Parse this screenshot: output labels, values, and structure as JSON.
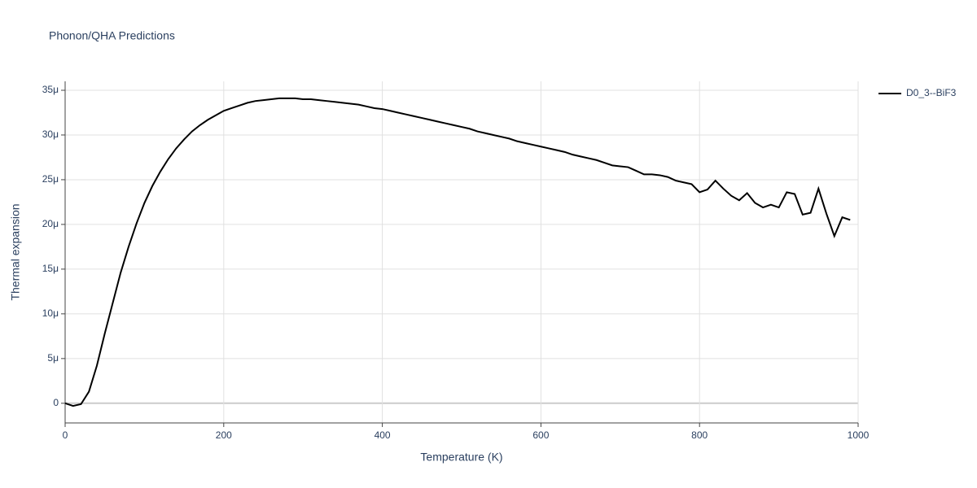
{
  "chart_data": {
    "type": "line",
    "title": "Phonon/QHA Predictions",
    "x_label": "Temperature (K)",
    "y_label": "Thermal expansion",
    "x": [
      0,
      10,
      20,
      30,
      40,
      50,
      60,
      70,
      80,
      90,
      100,
      110,
      120,
      130,
      140,
      150,
      160,
      170,
      180,
      190,
      200,
      210,
      220,
      230,
      240,
      250,
      260,
      270,
      280,
      290,
      300,
      310,
      320,
      330,
      340,
      350,
      360,
      370,
      380,
      390,
      400,
      410,
      420,
      430,
      440,
      450,
      460,
      470,
      480,
      490,
      500,
      510,
      520,
      530,
      540,
      550,
      560,
      570,
      580,
      590,
      600,
      610,
      620,
      630,
      640,
      650,
      660,
      670,
      680,
      690,
      700,
      710,
      720,
      730,
      740,
      750,
      760,
      770,
      780,
      790,
      800,
      810,
      820,
      830,
      840,
      850,
      860,
      870,
      880,
      890,
      900,
      910,
      920,
      930,
      940,
      950,
      960,
      970,
      980,
      990
    ],
    "series": [
      {
        "name": "D0_3--BiF3",
        "color": "#000000",
        "values": [
          0,
          -0.3,
          -0.1,
          1.3,
          4.2,
          7.8,
          11.2,
          14.6,
          17.5,
          20.1,
          22.4,
          24.3,
          25.9,
          27.3,
          28.5,
          29.5,
          30.4,
          31.1,
          31.7,
          32.2,
          32.7,
          33.0,
          33.3,
          33.6,
          33.8,
          33.9,
          34.0,
          34.1,
          34.1,
          34.1,
          34.0,
          34.0,
          33.9,
          33.8,
          33.7,
          33.6,
          33.5,
          33.4,
          33.2,
          33.0,
          32.9,
          32.7,
          32.5,
          32.3,
          32.1,
          31.9,
          31.7,
          31.5,
          31.3,
          31.1,
          30.9,
          30.7,
          30.4,
          30.2,
          30.0,
          29.8,
          29.6,
          29.3,
          29.1,
          28.9,
          28.7,
          28.5,
          28.3,
          28.1,
          27.8,
          27.6,
          27.4,
          27.2,
          26.9,
          26.6,
          26.5,
          26.4,
          26.0,
          25.6,
          25.6,
          25.5,
          25.3,
          24.9,
          24.7,
          24.5,
          23.6,
          23.9,
          24.9,
          24.0,
          23.2,
          22.7,
          23.5,
          22.4,
          21.9,
          22.2,
          21.9,
          23.6,
          23.4,
          21.1,
          21.3,
          24.0,
          21.2,
          18.7,
          20.8,
          20.5
        ]
      }
    ],
    "xlim": [
      0,
      1000
    ],
    "xticks": [
      0,
      200,
      400,
      600,
      800,
      1000
    ],
    "ylim": [
      -2.2,
      36
    ],
    "yticks": [
      {
        "value": 0,
        "label": "0"
      },
      {
        "value": 5,
        "label": "5μ"
      },
      {
        "value": 10,
        "label": "10μ"
      },
      {
        "value": 15,
        "label": "15μ"
      },
      {
        "value": 20,
        "label": "20μ"
      },
      {
        "value": 25,
        "label": "25μ"
      },
      {
        "value": 30,
        "label": "30μ"
      },
      {
        "value": 35,
        "label": "35μ"
      }
    ],
    "grid": true,
    "legend": "top-right"
  }
}
